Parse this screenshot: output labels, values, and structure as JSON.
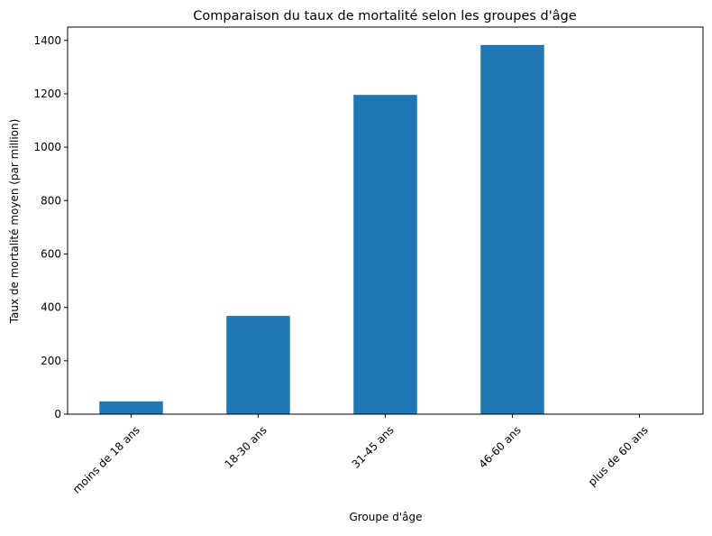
{
  "chart_data": {
    "type": "bar",
    "title": "Comparaison du taux de mortalité selon les groupes d'âge",
    "xlabel": "Groupe d'âge",
    "ylabel": "Taux de mortalité moyen (par million)",
    "categories": [
      "moins de 18 ans",
      "18-30 ans",
      "31-45 ans",
      "46-60 ans",
      "plus de 60 ans"
    ],
    "values": [
      48,
      368,
      1196,
      1383,
      0
    ],
    "ylim": [
      0,
      1450
    ],
    "yticks": [
      0,
      200,
      400,
      600,
      800,
      1000,
      1200,
      1400
    ],
    "grid": false,
    "legend": "none",
    "bar_color": "#1f77b4"
  }
}
